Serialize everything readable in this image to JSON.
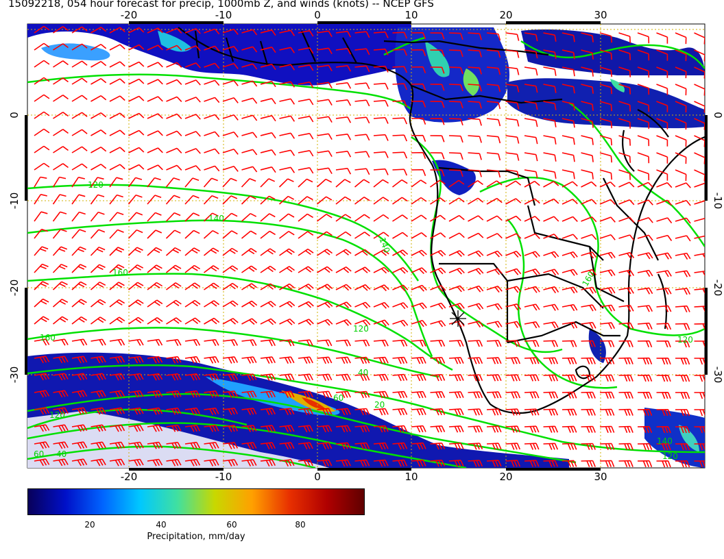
{
  "title": "15092218, 054 hour forecast for precip, 1000mb Z, and winds (knots) -- NCEP GFS",
  "axes": {
    "x_ticks": [
      "-20",
      "-10",
      "0",
      "10",
      "20",
      "30"
    ],
    "y_ticks": [
      "0",
      "-10",
      "-20",
      "-30"
    ]
  },
  "contour_labels": [
    "120",
    "140",
    "160",
    "160",
    "60",
    "40",
    "120",
    "140",
    "120",
    "60",
    "40",
    "20",
    "160",
    "120",
    "140",
    "120"
  ],
  "colorbar": {
    "title": "Precipitation, mm/day",
    "ticks": [
      "20",
      "40",
      "60",
      "80"
    ],
    "range": [
      0,
      100
    ],
    "stops": [
      "#08005a",
      "#0010c8",
      "#0064ff",
      "#00c8ff",
      "#40e0a0",
      "#c8d800",
      "#ffa000",
      "#e83000",
      "#b00000",
      "#600000"
    ]
  },
  "colors": {
    "barbs": "#ff0000",
    "contours": "#00e000",
    "coast": "#000000",
    "grid": "#d0b000"
  }
}
